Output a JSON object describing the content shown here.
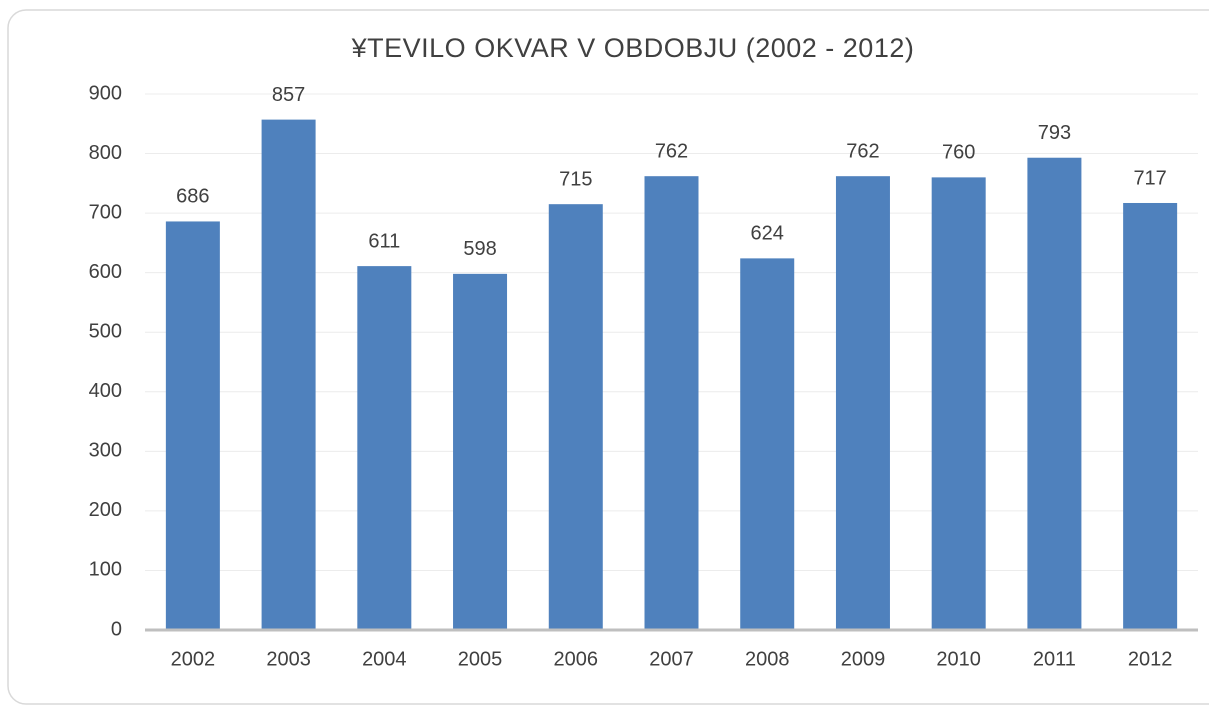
{
  "chart_data": {
    "type": "bar",
    "title": "¥TEVILO OKVAR V OBDOBJU (2002 - 2012)",
    "categories": [
      "2002",
      "2003",
      "2004",
      "2005",
      "2006",
      "2007",
      "2008",
      "2009",
      "2010",
      "2011",
      "2012"
    ],
    "values": [
      686,
      857,
      611,
      598,
      715,
      762,
      624,
      762,
      760,
      793,
      717
    ],
    "color": "#4f81bd",
    "ylim": [
      0,
      900
    ],
    "yticks": [
      0,
      100,
      200,
      300,
      400,
      500,
      600,
      700,
      800,
      900
    ],
    "grid": true
  }
}
